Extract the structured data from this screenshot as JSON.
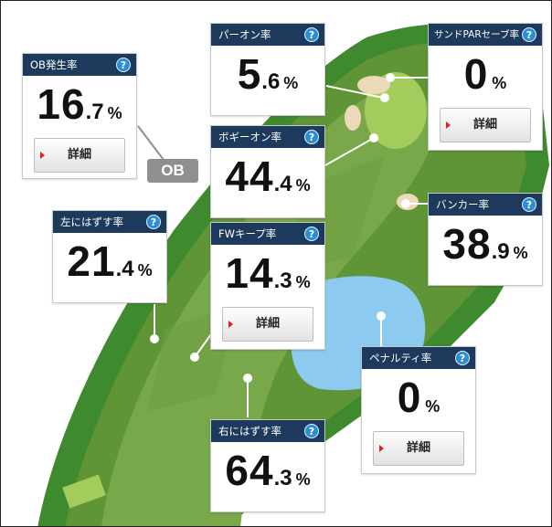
{
  "colors": {
    "header": "#1d3a5c",
    "help_icon": "#2a8fd6",
    "fairway": "#78a84a",
    "rough": "#5f9437",
    "green": "#a3cc5d",
    "water": "#8ccaf0",
    "sand": "#ecd9b8",
    "trees": "#3f8a2f"
  },
  "ob_label": "OB",
  "help_symbol": "?",
  "detail_label": "詳細",
  "stats": {
    "ob": {
      "title": "OB発生率",
      "int": "16",
      "dec": ".7",
      "unit": "%"
    },
    "par_on": {
      "title": "パーオン率",
      "int": "5",
      "dec": ".6",
      "unit": "%"
    },
    "sand_save": {
      "title": "サンドPARセーブ率",
      "int": "0",
      "dec": "",
      "unit": "%"
    },
    "bogey_on": {
      "title": "ボギーオン率",
      "int": "44",
      "dec": ".4",
      "unit": "%"
    },
    "bunker": {
      "title": "バンカー率",
      "int": "38",
      "dec": ".9",
      "unit": "%"
    },
    "left_miss": {
      "title": "左にはずす率",
      "int": "21",
      "dec": ".4",
      "unit": "%"
    },
    "fw_keep": {
      "title": "FWキープ率",
      "int": "14",
      "dec": ".3",
      "unit": "%"
    },
    "penalty": {
      "title": "ペナルティ率",
      "int": "0",
      "dec": "",
      "unit": "%"
    },
    "right_miss": {
      "title": "右にはずす率",
      "int": "64",
      "dec": ".3",
      "unit": "%"
    }
  }
}
